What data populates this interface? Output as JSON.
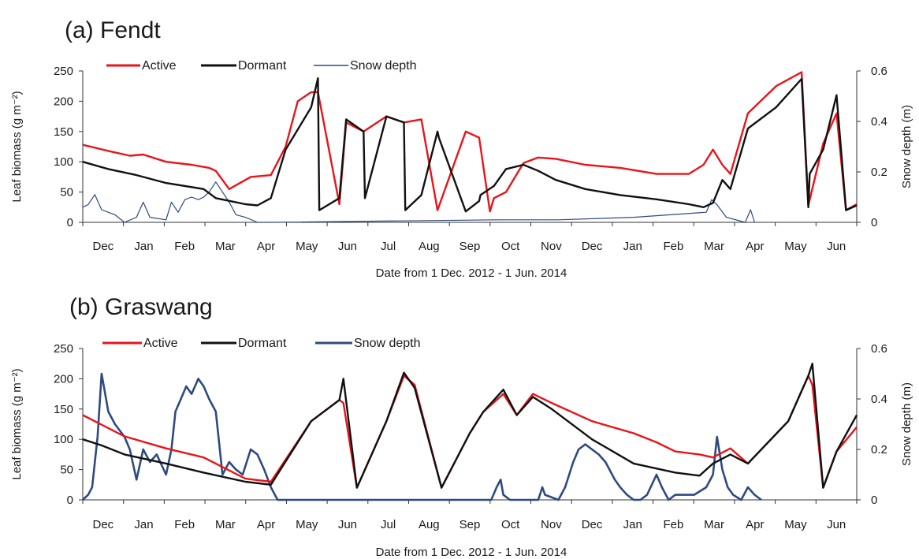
{
  "chart_data": [
    {
      "type": "line",
      "title": "(a) Fendt",
      "xlabel": "Date from 1 Dec. 2012 - 1 Jun. 2014",
      "ylabel": "Leaf biomass (g m⁻²)",
      "y2label": "Snow depth (m)",
      "ylim": [
        0,
        250
      ],
      "y2lim": [
        0,
        0.6
      ],
      "yticks": [
        "0",
        "50",
        "100",
        "150",
        "200",
        "250"
      ],
      "y2ticks": [
        "0",
        "0.2",
        "0.4",
        "0.6"
      ],
      "x_tick_labels": [
        "Dec",
        "Jan",
        "Feb",
        "Mar",
        "Apr",
        "May",
        "Jun",
        "Jul",
        "Aug",
        "Sep",
        "Oct",
        "Nov",
        "Dec",
        "Jan",
        "Feb",
        "Mar",
        "Apr",
        "May",
        "Jun"
      ],
      "xlim": [
        "2012-12-01",
        "2014-06-30"
      ],
      "legend_position": "top-left",
      "series": [
        {
          "name": "Active",
          "axis": "left",
          "color": "#e8141b",
          "x": [
            "2012-12-01",
            "2012-12-20",
            "2013-01-05",
            "2013-01-15",
            "2013-02-01",
            "2013-02-20",
            "2013-03-05",
            "2013-03-10",
            "2013-03-20",
            "2013-04-05",
            "2013-04-20",
            "2013-05-01",
            "2013-05-10",
            "2013-05-20",
            "2013-05-25",
            "2013-06-10",
            "2013-06-15",
            "2013-06-28",
            "2013-07-15",
            "2013-07-28",
            "2013-08-10",
            "2013-08-22",
            "2013-09-12",
            "2013-09-22",
            "2013-09-30",
            "2013-10-03",
            "2013-10-12",
            "2013-10-25",
            "2013-11-05",
            "2013-11-18",
            "2013-12-10",
            "2014-01-05",
            "2014-02-01",
            "2014-02-25",
            "2014-03-08",
            "2014-03-15",
            "2014-03-22",
            "2014-03-28",
            "2014-04-10",
            "2014-05-01",
            "2014-05-20",
            "2014-05-25",
            "2014-06-05",
            "2014-06-15",
            "2014-06-22",
            "2014-06-30"
          ],
          "values": [
            128,
            118,
            110,
            112,
            100,
            95,
            90,
            85,
            55,
            75,
            78,
            125,
            200,
            215,
            215,
            30,
            165,
            150,
            175,
            165,
            170,
            20,
            150,
            140,
            18,
            40,
            50,
            98,
            107,
            105,
            95,
            90,
            80,
            80,
            95,
            120,
            95,
            80,
            180,
            225,
            248,
            28,
            130,
            180,
            20,
            30
          ]
        },
        {
          "name": "Dormant",
          "axis": "left",
          "color": "#111111",
          "x": [
            "2012-12-01",
            "2012-12-20",
            "2013-01-10",
            "2013-02-01",
            "2013-03-01",
            "2013-03-10",
            "2013-04-01",
            "2013-04-10",
            "2013-04-20",
            "2013-05-01",
            "2013-05-20",
            "2013-05-25",
            "2013-05-26",
            "2013-06-10",
            "2013-06-15",
            "2013-06-28",
            "2013-06-29",
            "2013-07-15",
            "2013-07-28",
            "2013-07-29",
            "2013-08-10",
            "2013-08-22",
            "2013-08-23",
            "2013-09-12",
            "2013-09-22",
            "2013-09-23",
            "2013-10-03",
            "2013-10-12",
            "2013-10-25",
            "2013-11-05",
            "2013-11-18",
            "2013-12-10",
            "2014-01-05",
            "2014-02-01",
            "2014-02-25",
            "2014-03-08",
            "2014-03-15",
            "2014-03-22",
            "2014-03-28",
            "2014-04-10",
            "2014-05-01",
            "2014-05-20",
            "2014-05-25",
            "2014-05-26",
            "2014-06-05",
            "2014-06-15",
            "2014-06-22",
            "2014-06-30"
          ],
          "values": [
            100,
            88,
            78,
            65,
            55,
            40,
            30,
            28,
            40,
            120,
            190,
            238,
            20,
            40,
            170,
            150,
            40,
            175,
            165,
            20,
            45,
            150,
            140,
            18,
            35,
            45,
            60,
            88,
            95,
            85,
            70,
            55,
            45,
            38,
            30,
            25,
            32,
            70,
            55,
            155,
            190,
            237,
            25,
            80,
            120,
            210,
            20,
            28
          ]
        },
        {
          "name": "Snow depth",
          "axis": "right",
          "color": "#2e4a7f",
          "x": [
            "2012-12-01",
            "2012-12-05",
            "2012-12-10",
            "2012-12-15",
            "2012-12-20",
            "2012-12-25",
            "2013-01-01",
            "2013-01-10",
            "2013-01-15",
            "2013-01-20",
            "2013-02-01",
            "2013-02-05",
            "2013-02-10",
            "2013-02-15",
            "2013-02-20",
            "2013-02-25",
            "2013-03-01",
            "2013-03-05",
            "2013-03-10",
            "2013-03-15",
            "2013-03-20",
            "2013-03-25",
            "2013-04-01",
            "2013-04-10",
            "2013-04-20",
            "2013-10-05",
            "2013-11-20",
            "2014-01-15",
            "2014-03-10",
            "2014-03-14",
            "2014-03-18",
            "2014-03-25",
            "2014-04-08",
            "2014-04-12",
            "2014-04-15"
          ],
          "values": [
            0.06,
            0.07,
            0.11,
            0.05,
            0.04,
            0.03,
            0,
            0.02,
            0.08,
            0.02,
            0.01,
            0.08,
            0.04,
            0.09,
            0.1,
            0.09,
            0.1,
            0.12,
            0.16,
            0.12,
            0.08,
            0.03,
            0.02,
            0,
            0,
            0.01,
            0.01,
            0.02,
            0.04,
            0.09,
            0.07,
            0.02,
            0,
            0.05,
            0
          ]
        }
      ],
      "legend": [
        {
          "label": "Active",
          "color": "#e8141b"
        },
        {
          "label": "Dormant",
          "color": "#111111"
        },
        {
          "label": "Snow depth",
          "color": "#2e4a7f"
        }
      ]
    },
    {
      "type": "line",
      "title": "(b) Graswang",
      "xlabel": "Date from 1 Dec. 2012 - 1 Jun. 2014",
      "ylabel": "Leaf biomass (g m⁻²)",
      "y2label": "Snow depth (m)",
      "ylim": [
        0,
        250
      ],
      "y2lim": [
        0,
        0.6
      ],
      "yticks": [
        "0",
        "50",
        "100",
        "150",
        "200",
        "250"
      ],
      "y2ticks": [
        "0",
        "0.2",
        "0.4",
        "0.6"
      ],
      "x_tick_labels": [
        "Dec",
        "Jan",
        "Feb",
        "Mar",
        "Apr",
        "May",
        "Jun",
        "Jul",
        "Aug",
        "Sep",
        "Oct",
        "Nov",
        "Dec",
        "Jan",
        "Feb",
        "Mar",
        "Apr",
        "May",
        "Jun"
      ],
      "xlim": [
        "2012-12-01",
        "2014-06-30"
      ],
      "legend_position": "top-left",
      "series": [
        {
          "name": "Active",
          "axis": "left",
          "color": "#e8141b",
          "x": [
            "2012-12-01",
            "2013-01-01",
            "2013-02-01",
            "2013-03-01",
            "2013-04-01",
            "2013-04-20",
            "2013-05-20",
            "2013-06-10",
            "2013-06-13",
            "2013-06-23",
            "2013-07-15",
            "2013-07-28",
            "2013-08-05",
            "2013-08-25",
            "2013-09-15",
            "2013-09-25",
            "2013-10-10",
            "2013-10-20",
            "2013-11-01",
            "2013-11-15",
            "2013-12-15",
            "2014-01-15",
            "2014-02-01",
            "2014-02-15",
            "2014-03-05",
            "2014-03-15",
            "2014-03-28",
            "2014-04-10",
            "2014-05-10",
            "2014-05-25",
            "2014-05-28",
            "2014-06-05",
            "2014-06-15",
            "2014-06-30"
          ],
          "values": [
            140,
            105,
            85,
            70,
            35,
            30,
            130,
            165,
            160,
            20,
            130,
            205,
            190,
            20,
            110,
            145,
            175,
            140,
            175,
            160,
            130,
            110,
            95,
            80,
            75,
            70,
            85,
            60,
            130,
            205,
            190,
            20,
            80,
            120
          ]
        },
        {
          "name": "Dormant",
          "axis": "left",
          "color": "#111111",
          "x": [
            "2012-12-01",
            "2012-12-15",
            "2013-01-01",
            "2013-02-01",
            "2013-03-01",
            "2013-04-01",
            "2013-04-20",
            "2013-05-20",
            "2013-06-10",
            "2013-06-13",
            "2013-06-23",
            "2013-07-15",
            "2013-07-28",
            "2013-08-05",
            "2013-08-25",
            "2013-09-15",
            "2013-09-25",
            "2013-10-10",
            "2013-10-20",
            "2013-11-01",
            "2013-11-15",
            "2013-12-15",
            "2014-01-15",
            "2014-02-15",
            "2014-03-05",
            "2014-03-15",
            "2014-03-28",
            "2014-04-10",
            "2014-05-10",
            "2014-05-25",
            "2014-05-28",
            "2014-06-05",
            "2014-06-15",
            "2014-06-30"
          ],
          "values": [
            100,
            90,
            75,
            60,
            45,
            30,
            25,
            130,
            165,
            200,
            20,
            130,
            210,
            185,
            20,
            110,
            145,
            182,
            140,
            170,
            150,
            100,
            60,
            45,
            40,
            60,
            75,
            60,
            130,
            205,
            225,
            20,
            80,
            140
          ]
        },
        {
          "name": "Snow depth",
          "axis": "right",
          "color": "#2e4a7f",
          "x": [
            "2012-12-01",
            "2012-12-05",
            "2012-12-08",
            "2012-12-12",
            "2012-12-15",
            "2012-12-20",
            "2012-12-25",
            "2013-01-01",
            "2013-01-05",
            "2013-01-10",
            "2013-01-15",
            "2013-01-20",
            "2013-01-25",
            "2013-02-01",
            "2013-02-05",
            "2013-02-08",
            "2013-02-12",
            "2013-02-16",
            "2013-02-20",
            "2013-02-25",
            "2013-03-01",
            "2013-03-05",
            "2013-03-10",
            "2013-03-15",
            "2013-03-20",
            "2013-03-25",
            "2013-03-30",
            "2013-04-05",
            "2013-04-10",
            "2013-04-15",
            "2013-04-20",
            "2013-04-25",
            "2013-05-01",
            "2013-06-01",
            "2013-10-01",
            "2013-10-05",
            "2013-10-08",
            "2013-10-10",
            "2013-10-15",
            "2013-11-05",
            "2013-11-08",
            "2013-11-10",
            "2013-11-20",
            "2013-11-25",
            "2013-12-01",
            "2013-12-05",
            "2013-12-10",
            "2013-12-15",
            "2013-12-20",
            "2013-12-25",
            "2014-01-01",
            "2014-01-05",
            "2014-01-10",
            "2014-01-15",
            "2014-01-20",
            "2014-01-25",
            "2014-02-01",
            "2014-02-05",
            "2014-02-10",
            "2014-02-15",
            "2014-03-01",
            "2014-03-10",
            "2014-03-15",
            "2014-03-18",
            "2014-03-22",
            "2014-03-26",
            "2014-03-30",
            "2014-04-05",
            "2014-04-10",
            "2014-04-15",
            "2014-04-20"
          ],
          "values": [
            0,
            0.02,
            0.05,
            0.25,
            0.5,
            0.35,
            0.3,
            0.25,
            0.2,
            0.08,
            0.2,
            0.15,
            0.18,
            0.1,
            0.2,
            0.35,
            0.4,
            0.45,
            0.42,
            0.48,
            0.45,
            0.4,
            0.35,
            0.1,
            0.15,
            0.12,
            0.1,
            0.2,
            0.18,
            0.12,
            0.05,
            0,
            0,
            0,
            0,
            0.05,
            0.08,
            0.02,
            0,
            0,
            0.05,
            0.02,
            0,
            0.05,
            0.15,
            0.2,
            0.22,
            0.2,
            0.18,
            0.15,
            0.08,
            0.05,
            0.02,
            0,
            0,
            0.02,
            0.1,
            0.05,
            0,
            0.02,
            0.02,
            0.05,
            0.1,
            0.25,
            0.12,
            0.05,
            0.02,
            0,
            0.05,
            0.02,
            0
          ]
        }
      ],
      "legend": [
        {
          "label": "Active",
          "color": "#e8141b"
        },
        {
          "label": "Dormant",
          "color": "#111111"
        },
        {
          "label": "Snow depth",
          "color": "#2e4a7f"
        }
      ]
    }
  ]
}
